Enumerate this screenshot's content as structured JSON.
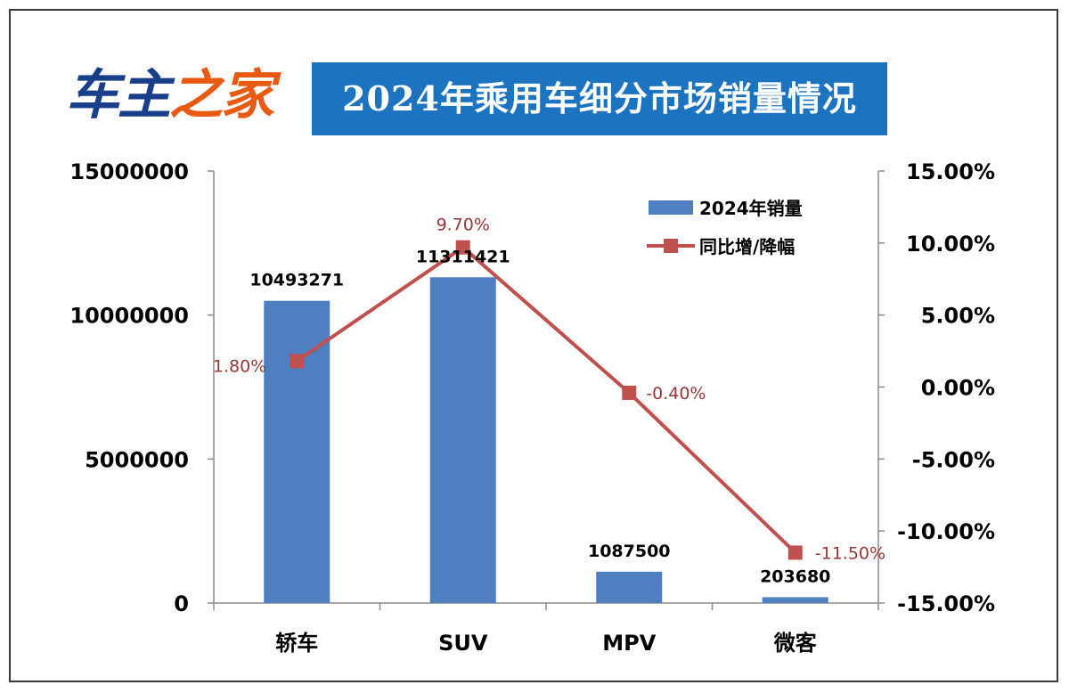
{
  "logo": {
    "part1": "车主",
    "part2": "之家"
  },
  "header": {
    "title": "2024年乘用车细分市场销量情况"
  },
  "colors": {
    "bar": "#4f7fc0",
    "line": "#c0504d",
    "line_label": "#953734",
    "title_bg": "#1c73c0"
  },
  "chart_data": {
    "type": "bar",
    "title": "2024年乘用车细分市场销量情况",
    "categories": [
      "轿车",
      "SUV",
      "MPV",
      "微客"
    ],
    "series": [
      {
        "name": "2024年销量",
        "type": "bar",
        "axis": "left",
        "values": [
          10493271,
          11311421,
          1087500,
          203680
        ],
        "labels": [
          "10493271",
          "11311421",
          "1087500",
          "203680"
        ]
      },
      {
        "name": "同比增/降幅",
        "type": "line",
        "axis": "right",
        "values": [
          1.8,
          9.7,
          -0.4,
          -11.5
        ],
        "labels": [
          "1.80%",
          "9.70%",
          "-0.40%",
          "-11.50%"
        ]
      }
    ],
    "ylim_left": [
      0,
      15000000
    ],
    "yticks_left": [
      "0",
      "5000000",
      "10000000",
      "15000000"
    ],
    "ylim_right": [
      -15,
      15
    ],
    "yticks_right": [
      "-15.00%",
      "-10.00%",
      "-5.00%",
      "0.00%",
      "5.00%",
      "10.00%",
      "15.00%"
    ],
    "legend_position": "top-right",
    "grid": false
  }
}
